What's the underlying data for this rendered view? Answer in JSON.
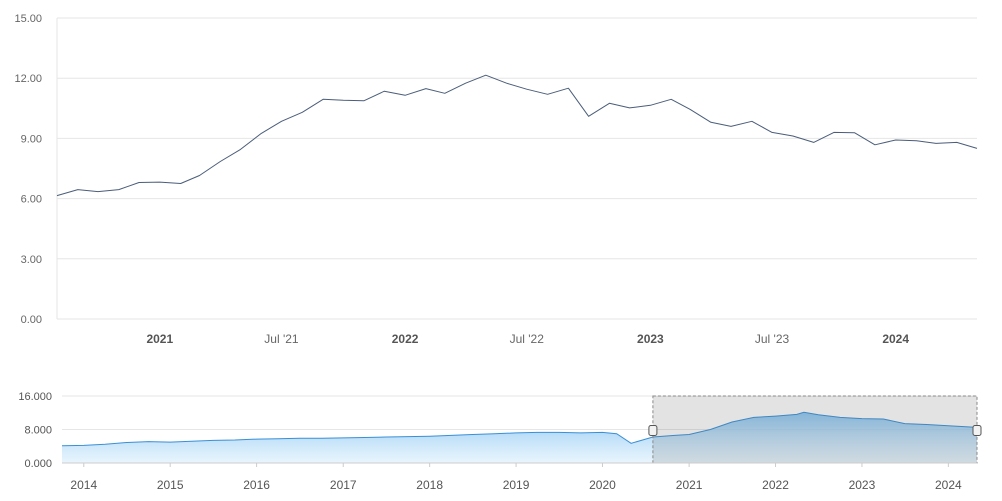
{
  "chart_data": [
    {
      "type": "line",
      "title": "",
      "xlabel": "",
      "ylabel": "",
      "ylim": [
        0,
        15
      ],
      "y_ticks": [
        "0.00",
        "3.00",
        "6.00",
        "9.00",
        "12.00",
        "15.00"
      ],
      "x_ticks": [
        {
          "date": "2021-01-01",
          "label": "2021",
          "bold": true
        },
        {
          "date": "2021-07-01",
          "label": "Jul '21",
          "bold": false
        },
        {
          "date": "2022-01-01",
          "label": "2022",
          "bold": true
        },
        {
          "date": "2022-07-01",
          "label": "Jul '22",
          "bold": false
        },
        {
          "date": "2023-01-01",
          "label": "2023",
          "bold": true
        },
        {
          "date": "2023-07-01",
          "label": "Jul '23",
          "bold": false
        },
        {
          "date": "2024-01-01",
          "label": "2024",
          "bold": true
        }
      ],
      "grid": true,
      "color": "#4a5d7a",
      "series": [
        {
          "x": [
            "2020-08-01",
            "2020-09-01",
            "2020-10-01",
            "2020-11-01",
            "2020-12-01",
            "2021-01-01",
            "2021-02-01",
            "2021-03-01",
            "2021-04-01",
            "2021-05-01",
            "2021-06-01",
            "2021-07-01",
            "2021-08-01",
            "2021-09-01",
            "2021-10-01",
            "2021-11-01",
            "2021-12-01",
            "2022-01-01",
            "2022-02-01",
            "2022-03-01",
            "2022-04-01",
            "2022-05-01",
            "2022-06-01",
            "2022-07-01",
            "2022-08-01",
            "2022-09-01",
            "2022-10-01",
            "2022-11-01",
            "2022-12-01",
            "2023-01-01",
            "2023-02-01",
            "2023-03-01",
            "2023-04-01",
            "2023-05-01",
            "2023-06-01",
            "2023-07-01",
            "2023-08-01",
            "2023-09-01",
            "2023-10-01",
            "2023-11-01",
            "2023-12-01",
            "2024-01-01",
            "2024-02-01",
            "2024-03-01",
            "2024-04-01",
            "2024-05-01"
          ],
          "values": [
            6.15,
            6.45,
            6.35,
            6.45,
            6.8,
            6.82,
            6.75,
            7.15,
            7.85,
            8.45,
            9.25,
            9.85,
            10.3,
            10.95,
            10.9,
            10.88,
            11.35,
            11.15,
            11.48,
            11.25,
            11.75,
            12.15,
            11.75,
            11.45,
            11.2,
            11.5,
            10.1,
            10.75,
            10.52,
            10.65,
            10.95,
            10.45,
            9.8,
            9.6,
            9.85,
            9.3,
            9.12,
            8.8,
            9.3,
            9.28,
            8.68,
            8.92,
            8.88,
            8.75,
            8.8,
            8.5
          ]
        }
      ]
    },
    {
      "type": "area",
      "title": "",
      "xlabel": "",
      "ylabel": "",
      "ylim": [
        0,
        16
      ],
      "y_ticks": [
        "0.000",
        "8.000",
        "16.000"
      ],
      "x_ticks": [
        "2014",
        "2015",
        "2016",
        "2017",
        "2018",
        "2019",
        "2020",
        "2021",
        "2022",
        "2023",
        "2024"
      ],
      "grid": true,
      "color": "#3a8fd6",
      "selected_range": [
        "2020-08-01",
        "2024-05-01"
      ],
      "series": [
        {
          "x": [
            "2013-10-01",
            "2014-01-01",
            "2014-04-01",
            "2014-07-01",
            "2014-10-01",
            "2015-01-01",
            "2015-04-01",
            "2015-07-01",
            "2015-10-01",
            "2016-01-01",
            "2016-04-01",
            "2016-07-01",
            "2016-10-01",
            "2017-01-01",
            "2017-04-01",
            "2017-07-01",
            "2017-10-01",
            "2018-01-01",
            "2018-04-01",
            "2018-07-01",
            "2018-10-01",
            "2019-01-01",
            "2019-04-01",
            "2019-07-01",
            "2019-10-01",
            "2020-01-01",
            "2020-03-01",
            "2020-05-01",
            "2020-08-01",
            "2020-11-01",
            "2021-01-01",
            "2021-04-01",
            "2021-07-01",
            "2021-10-01",
            "2022-01-01",
            "2022-04-01",
            "2022-05-01",
            "2022-07-01",
            "2022-10-01",
            "2023-01-01",
            "2023-04-01",
            "2023-07-01",
            "2023-10-01",
            "2024-01-01",
            "2024-05-01"
          ],
          "values": [
            4.1,
            4.2,
            4.5,
            4.9,
            5.1,
            5.0,
            5.2,
            5.4,
            5.5,
            5.7,
            5.8,
            5.9,
            5.9,
            6.0,
            6.1,
            6.2,
            6.3,
            6.4,
            6.6,
            6.8,
            7.0,
            7.2,
            7.3,
            7.3,
            7.2,
            7.3,
            7.0,
            4.7,
            6.2,
            6.6,
            6.8,
            8.0,
            9.8,
            10.9,
            11.2,
            11.6,
            12.1,
            11.5,
            10.9,
            10.6,
            10.5,
            9.4,
            9.2,
            8.9,
            8.5
          ]
        }
      ]
    }
  ]
}
